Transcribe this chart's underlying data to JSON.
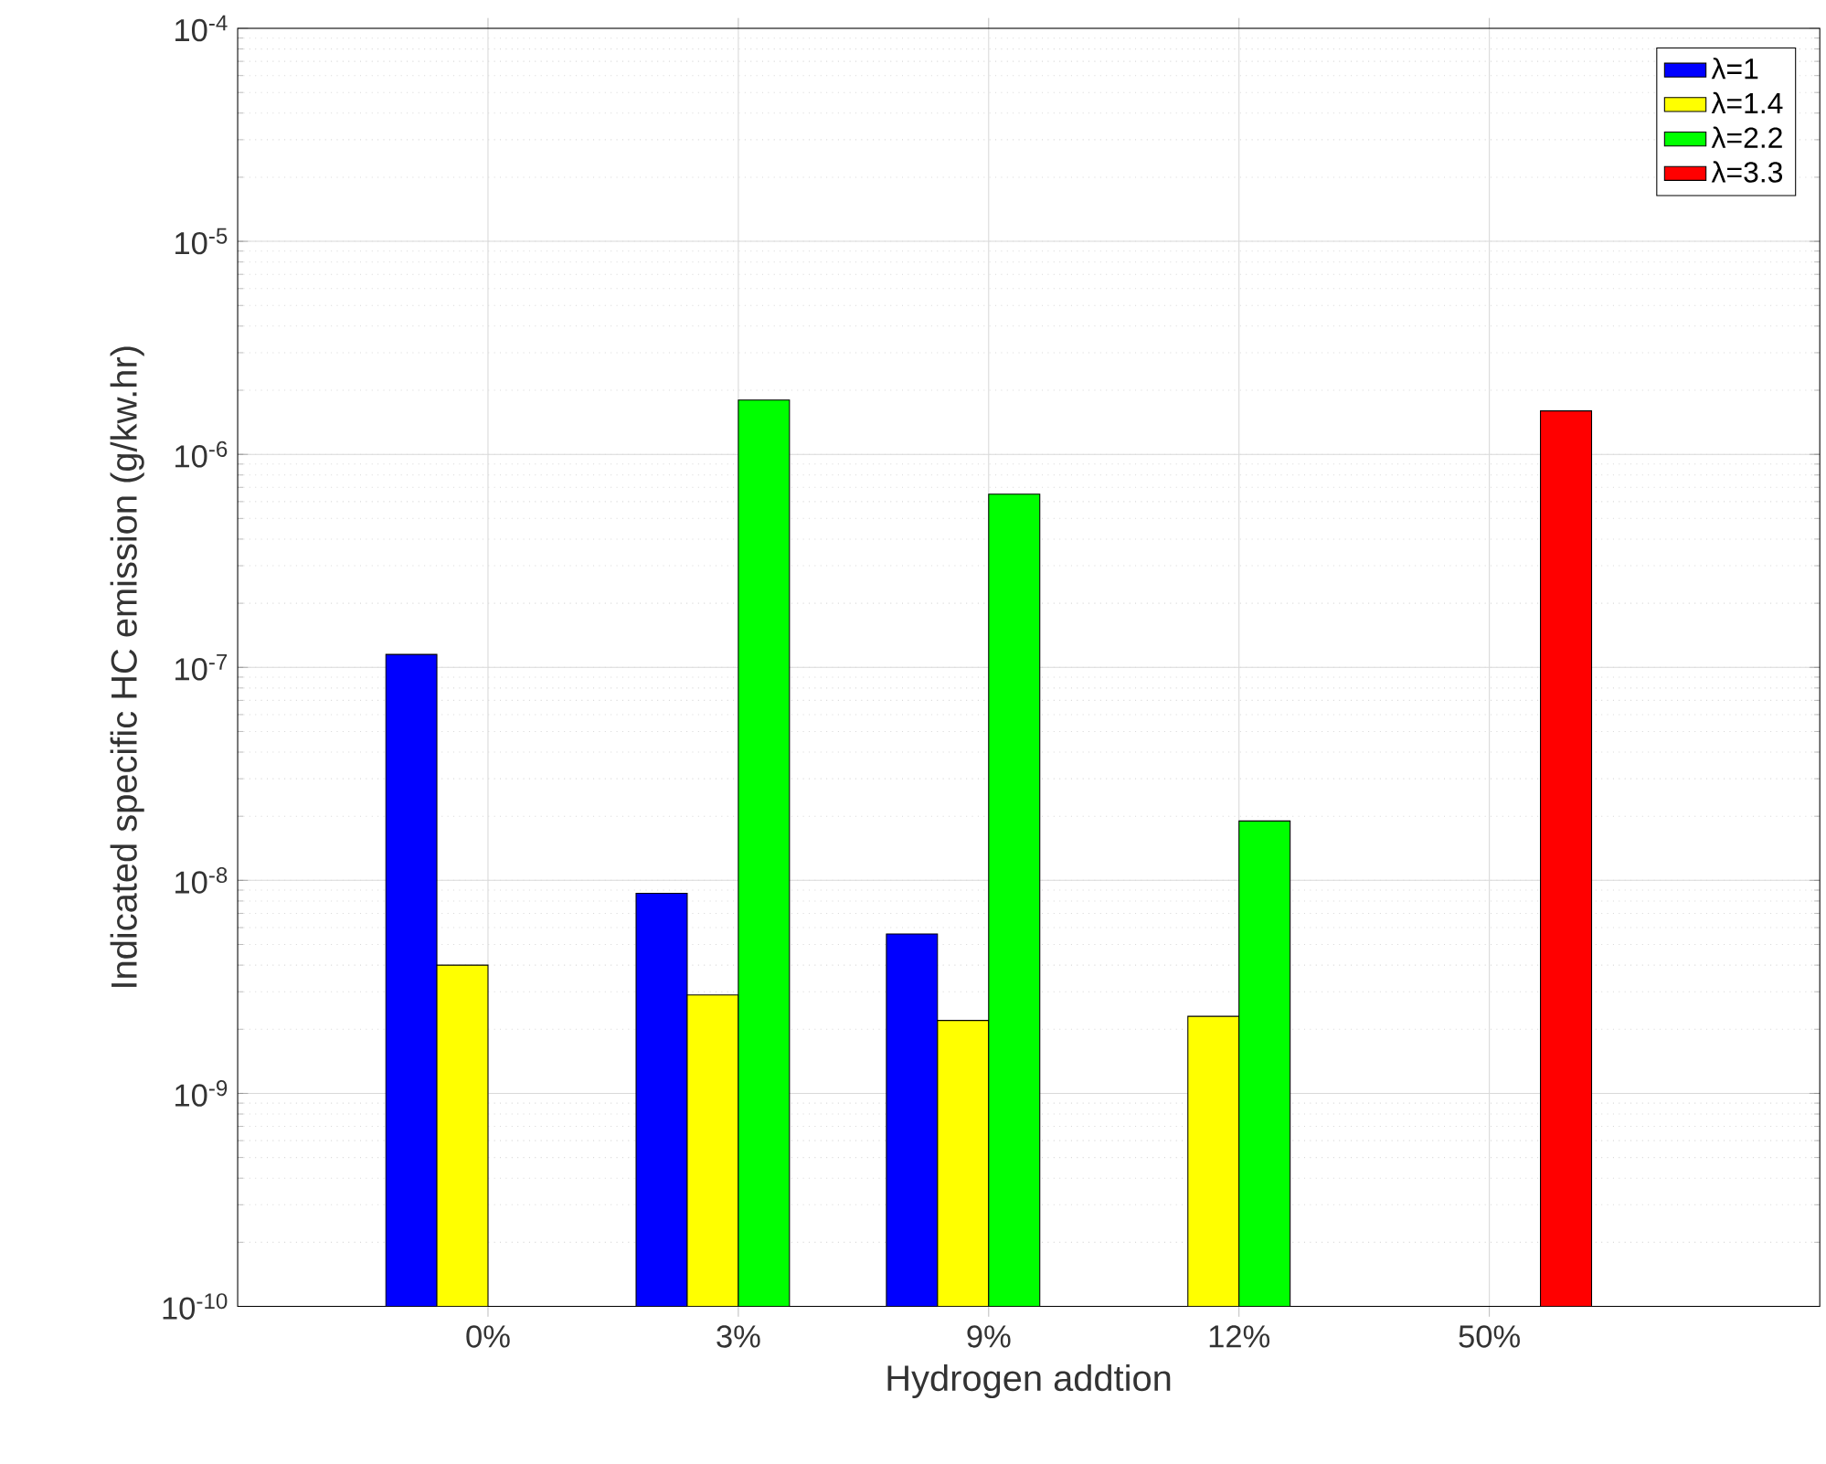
{
  "chart_data": {
    "type": "bar",
    "xlabel": "Hydrogen addtion",
    "ylabel": "Indicated specific HC emission (g/kw.hr)",
    "categories": [
      "0%",
      "3%",
      "9%",
      "12%",
      "50%"
    ],
    "series": [
      {
        "name": "λ=1",
        "color": "#0000ff",
        "values": [
          1.15e-07,
          8.7e-09,
          5.6e-09,
          null,
          null
        ]
      },
      {
        "name": "λ=1.4",
        "color": "#ffff00",
        "values": [
          4e-09,
          2.9e-09,
          2.2e-09,
          2.3e-09,
          null
        ]
      },
      {
        "name": "λ=2.2",
        "color": "#00ff00",
        "values": [
          null,
          1.8e-06,
          6.5e-07,
          1.9e-08,
          null
        ]
      },
      {
        "name": "λ=3.3",
        "color": "#ff0000",
        "values": [
          null,
          null,
          null,
          null,
          1.6e-06
        ]
      }
    ],
    "log": true,
    "ylim": [
      1e-10,
      0.0001
    ],
    "yticks": [
      {
        "value": 1e-10,
        "label": "10$^{-10}$"
      },
      {
        "value": 1e-09,
        "label": "10$^{-9}$"
      },
      {
        "value": 1e-08,
        "label": "10$^{-8}$"
      },
      {
        "value": 1e-07,
        "label": "10$^{-7}$"
      },
      {
        "value": 1e-06,
        "label": "10$^{-6}$"
      },
      {
        "value": 1e-05,
        "label": "10$^{-5}$"
      },
      {
        "value": 0.0001,
        "label": "10$^{-4}$"
      }
    ],
    "grid": true,
    "legend": "top right"
  }
}
